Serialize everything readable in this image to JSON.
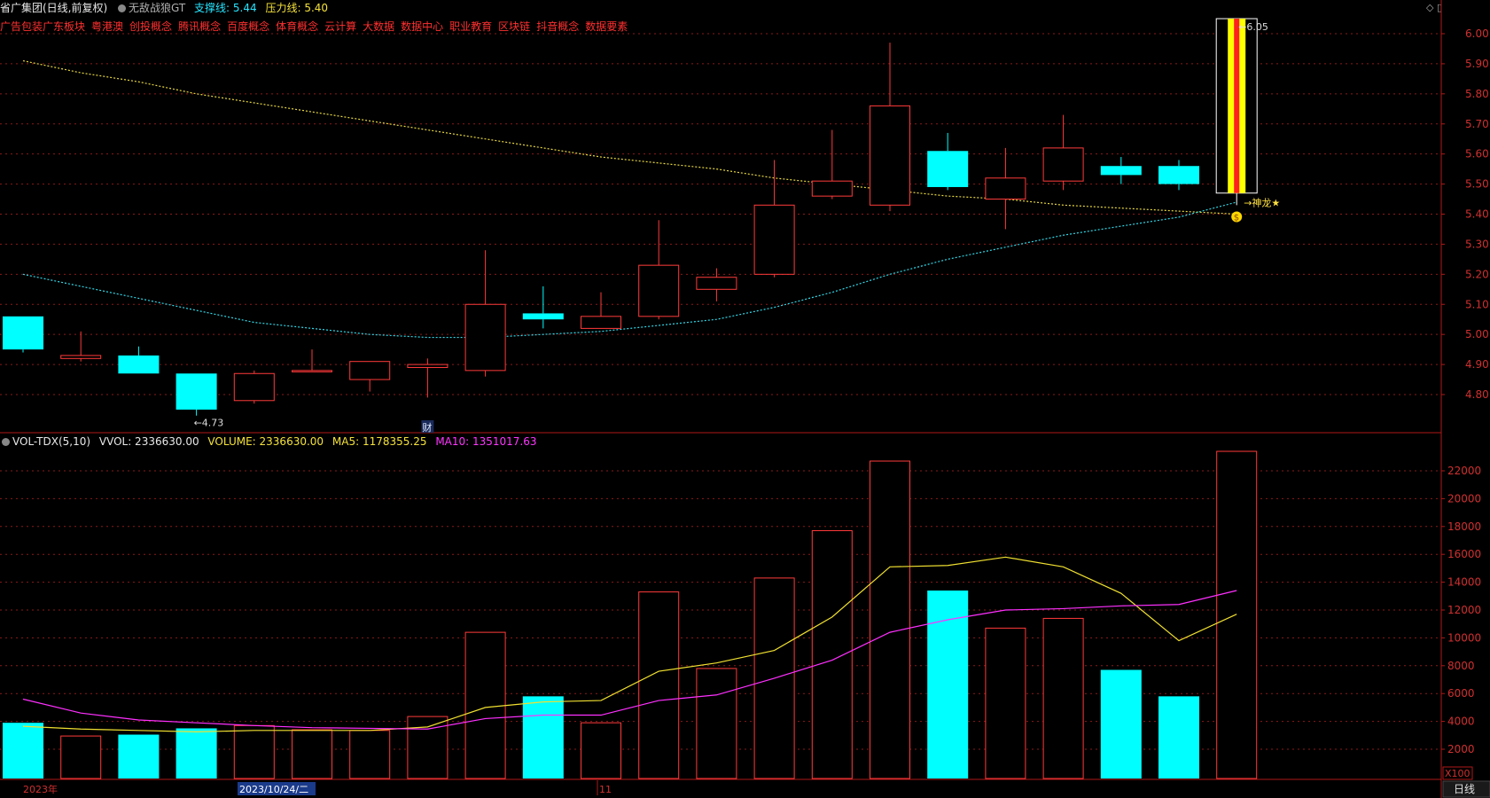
{
  "header": {
    "stock_title": "省广集团(日线,前复权)",
    "indicator_name": "无敌战狼GT",
    "support_label": "支撑线:",
    "support_value": "5.44",
    "resistance_label": "压力线:",
    "resistance_value": "5.40",
    "window_icons": [
      "diamond-icon",
      "layout-icon"
    ]
  },
  "concepts": [
    "广告包装",
    "广东板块",
    "粤港澳",
    "创投概念",
    "腾讯概念",
    "百度概念",
    "体育概念",
    "云计算",
    "大数据",
    "数据中心",
    "职业教育",
    "区块链",
    "抖音概念",
    "数据要素"
  ],
  "volume_header": {
    "name": "VOL-TDX(5,10)",
    "vvol": "VVOL: 2336630.00",
    "volume": "VOLUME: 2336630.00",
    "ma5": "MA5: 1178355.25",
    "ma10": "MA10: 1351017.63"
  },
  "colors": {
    "up": "#ff3a3a",
    "down": "#00ffff",
    "ma5": "#f0e030",
    "ma10": "#ff30ff",
    "grid": "#8a1a1a",
    "signal": "#ffd700"
  },
  "chart_data": [
    {
      "type": "candlestick",
      "y_ticks": [
        "6.00",
        "5.90",
        "5.80",
        "5.70",
        "5.60",
        "5.50",
        "5.40",
        "5.30",
        "5.20",
        "5.10",
        "5.00",
        "4.90",
        "4.80"
      ],
      "ylim": [
        4.67,
        6.05
      ],
      "candles": [
        {
          "o": 5.06,
          "h": 5.06,
          "l": 4.94,
          "c": 4.95
        },
        {
          "o": 4.92,
          "h": 5.01,
          "l": 4.91,
          "c": 4.93
        },
        {
          "o": 4.93,
          "h": 4.96,
          "l": 4.87,
          "c": 4.87
        },
        {
          "o": 4.87,
          "h": 4.87,
          "l": 4.73,
          "c": 4.75
        },
        {
          "o": 4.78,
          "h": 4.88,
          "l": 4.77,
          "c": 4.87
        },
        {
          "o": 4.88,
          "h": 4.95,
          "l": 4.88,
          "c": 4.88
        },
        {
          "o": 4.85,
          "h": 4.91,
          "l": 4.81,
          "c": 4.91
        },
        {
          "o": 4.89,
          "h": 4.92,
          "l": 4.79,
          "c": 4.9
        },
        {
          "o": 4.88,
          "h": 5.28,
          "l": 4.86,
          "c": 5.1
        },
        {
          "o": 5.07,
          "h": 5.16,
          "l": 5.02,
          "c": 5.05
        },
        {
          "o": 5.02,
          "h": 5.14,
          "l": 5.02,
          "c": 5.06
        },
        {
          "o": 5.06,
          "h": 5.38,
          "l": 5.05,
          "c": 5.23
        },
        {
          "o": 5.15,
          "h": 5.22,
          "l": 5.11,
          "c": 5.19
        },
        {
          "o": 5.2,
          "h": 5.58,
          "l": 5.19,
          "c": 5.43
        },
        {
          "o": 5.46,
          "h": 5.68,
          "l": 5.45,
          "c": 5.51
        },
        {
          "o": 5.43,
          "h": 5.97,
          "l": 5.41,
          "c": 5.76
        },
        {
          "o": 5.61,
          "h": 5.67,
          "l": 5.48,
          "c": 5.49
        },
        {
          "o": 5.45,
          "h": 5.62,
          "l": 5.35,
          "c": 5.52
        },
        {
          "o": 5.51,
          "h": 5.73,
          "l": 5.48,
          "c": 5.62
        },
        {
          "o": 5.56,
          "h": 5.59,
          "l": 5.5,
          "c": 5.53
        },
        {
          "o": 5.56,
          "h": 5.58,
          "l": 5.48,
          "c": 5.5
        },
        {
          "o": 5.47,
          "h": 6.05,
          "l": 5.43,
          "c": 6.05
        }
      ],
      "upper_line": [
        5.91,
        5.87,
        5.84,
        5.8,
        5.77,
        5.74,
        5.71,
        5.68,
        5.65,
        5.62,
        5.59,
        5.57,
        5.55,
        5.52,
        5.5,
        5.48,
        5.46,
        5.45,
        5.43,
        5.42,
        5.41,
        5.4
      ],
      "lower_line": [
        5.2,
        5.16,
        5.12,
        5.08,
        5.04,
        5.02,
        5.0,
        4.99,
        4.99,
        5.0,
        5.01,
        5.03,
        5.05,
        5.09,
        5.14,
        5.2,
        5.25,
        5.29,
        5.33,
        5.36,
        5.39,
        5.44
      ],
      "annotations": {
        "low_label": "←4.73",
        "high_label": "←6.05",
        "finance_marker": "财",
        "signal_label": "→神龙★",
        "signal_badge": "$"
      }
    },
    {
      "type": "bar",
      "title": "VOL-TDX(5,10)",
      "y_ticks": [
        "22000",
        "20000",
        "18000",
        "16000",
        "14000",
        "12000",
        "10000",
        "8000",
        "6000",
        "4000",
        "2000"
      ],
      "ylim": [
        0,
        23500
      ],
      "unit_label": "X100",
      "values": [
        3900,
        2950,
        3050,
        3500,
        3700,
        3400,
        3350,
        4350,
        10400,
        5800,
        3900,
        13300,
        7800,
        14300,
        17700,
        22700,
        13400,
        10700,
        11400,
        7700,
        5800,
        23400
      ],
      "down_flags": [
        1,
        0,
        1,
        1,
        0,
        0,
        0,
        0,
        0,
        1,
        0,
        0,
        0,
        0,
        0,
        0,
        1,
        0,
        0,
        1,
        1,
        0
      ],
      "series": [
        {
          "name": "MA5",
          "values": [
            3650,
            3450,
            3350,
            3250,
            3350,
            3350,
            3350,
            3600,
            5000,
            5400,
            5500,
            7600,
            8200,
            9100,
            11500,
            15100,
            15200,
            15800,
            15100,
            13200,
            9800,
            11700
          ]
        },
        {
          "name": "MA10",
          "values": [
            5600,
            4600,
            4100,
            3900,
            3700,
            3550,
            3500,
            3450,
            4200,
            4450,
            4450,
            5500,
            5900,
            7100,
            8400,
            10400,
            11300,
            12000,
            12100,
            12300,
            12400,
            13400
          ]
        }
      ]
    }
  ],
  "x_axis": {
    "labels": [
      "2023年",
      "2023/10/24/二",
      "11",
      "日线"
    ]
  }
}
